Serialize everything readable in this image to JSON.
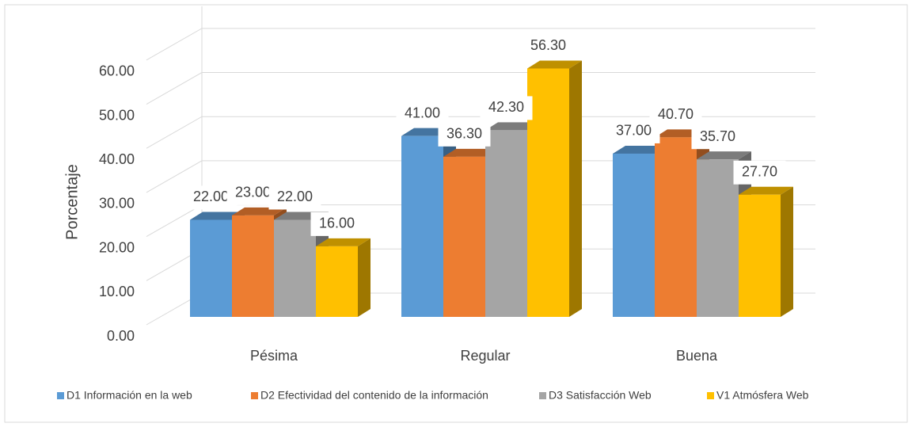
{
  "chart_data": {
    "type": "bar3d",
    "y_label": "Porcentaje",
    "categories": [
      "Pésima",
      "Regular",
      "Buena"
    ],
    "series": [
      {
        "name": "D1 Información en la web",
        "color": "#5b9bd5",
        "values": [
          22,
          41,
          37
        ],
        "value_labels": [
          "22.00",
          "41.00",
          "37.00"
        ]
      },
      {
        "name": "D2 Efectividad del contenido de la información",
        "color": "#ed7d31",
        "values": [
          23,
          36.3,
          40.7
        ],
        "value_labels": [
          "23.00",
          "36.30",
          "40.70"
        ]
      },
      {
        "name": "D3 Satisfacción Web",
        "color": "#a5a5a5",
        "values": [
          22,
          42.3,
          35.7
        ],
        "value_labels": [
          "22.00",
          "42.30",
          "35.70"
        ]
      },
      {
        "name": "V1 Atmósfera Web",
        "color": "#ffc000",
        "values": [
          16,
          56.3,
          27.7
        ],
        "value_labels": [
          "16.00",
          "56.30",
          "27.70"
        ]
      }
    ],
    "ylim": [
      0,
      65
    ],
    "yticks": [
      {
        "value": 0,
        "label": "0.00"
      },
      {
        "value": 10,
        "label": "10.00"
      },
      {
        "value": 20,
        "label": "20.00"
      },
      {
        "value": 30,
        "label": "30.00"
      },
      {
        "value": 40,
        "label": "40.00"
      },
      {
        "value": 50,
        "label": "50.00"
      },
      {
        "value": 60,
        "label": "60.00"
      }
    ],
    "grid": true,
    "legend": "bottom"
  }
}
